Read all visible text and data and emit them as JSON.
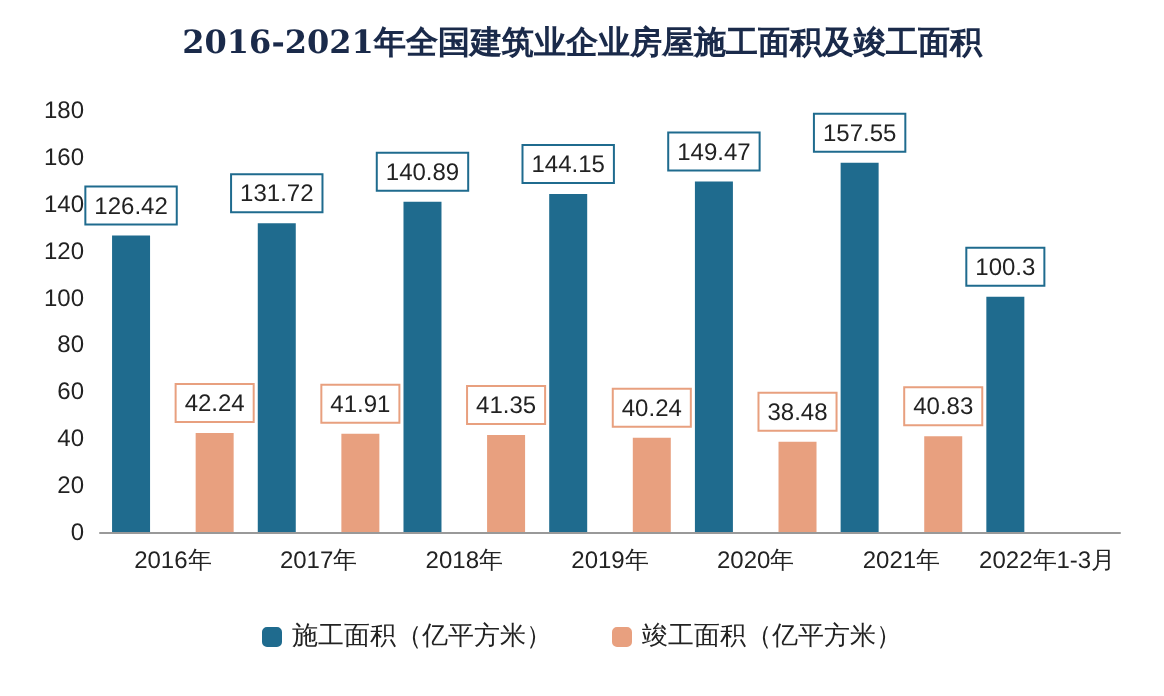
{
  "chart_data": {
    "type": "bar",
    "title": "2016-2021年全国建筑业企业房屋施工面积及竣工面积",
    "categories": [
      "2016年",
      "2017年",
      "2018年",
      "2019年",
      "2020年",
      "2021年",
      "2022年1-3月"
    ],
    "series": [
      {
        "name": "施工面积（亿平方米）",
        "color": "#1f6b8e",
        "values": [
          126.42,
          131.72,
          140.89,
          144.15,
          149.47,
          157.55,
          100.3
        ]
      },
      {
        "name": "竣工面积（亿平方米）",
        "color": "#e8a07f",
        "values": [
          42.24,
          41.91,
          41.35,
          40.24,
          38.48,
          40.83,
          null
        ]
      }
    ],
    "ylim": [
      0,
      180
    ],
    "yticks": [
      0,
      20,
      40,
      60,
      80,
      100,
      120,
      140,
      160,
      180
    ],
    "grid": false,
    "legend": "bottom",
    "data_labels": true
  }
}
